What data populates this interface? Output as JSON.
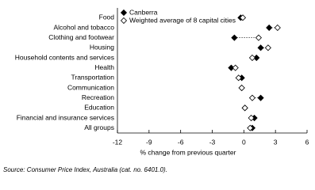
{
  "chart_data": {
    "type": "dot",
    "categories": [
      "Food",
      "Alcohol and tobacco",
      "Clothing and footwear",
      "Housing",
      "Household contents and services",
      "Health",
      "Transportation",
      "Communication",
      "Recreation",
      "Education",
      "Financial and insurance services",
      "All groups"
    ],
    "series": [
      {
        "name": "Canberra",
        "color": "#000000",
        "marker": "filled",
        "values": [
          -0.3,
          2.4,
          -0.9,
          1.6,
          1.2,
          -1.2,
          -0.2,
          -0.2,
          1.6,
          0.1,
          1.0,
          0.8
        ]
      },
      {
        "name": "Weighted average of 8 capital cities",
        "color": "#000000",
        "marker": "open",
        "values": [
          -0.1,
          3.2,
          1.4,
          2.3,
          0.8,
          -0.8,
          -0.5,
          -0.2,
          0.8,
          0.1,
          0.7,
          0.6
        ]
      }
    ],
    "xlim": [
      -12,
      6
    ],
    "xticks": [
      -12,
      -9,
      -6,
      -3,
      0,
      3,
      6
    ],
    "xlabel": "% change from previous quarter",
    "source": "Source: Consumer Price Index, Australia (cat. no. 6401.0).",
    "grid": false,
    "legend": "top-left"
  }
}
